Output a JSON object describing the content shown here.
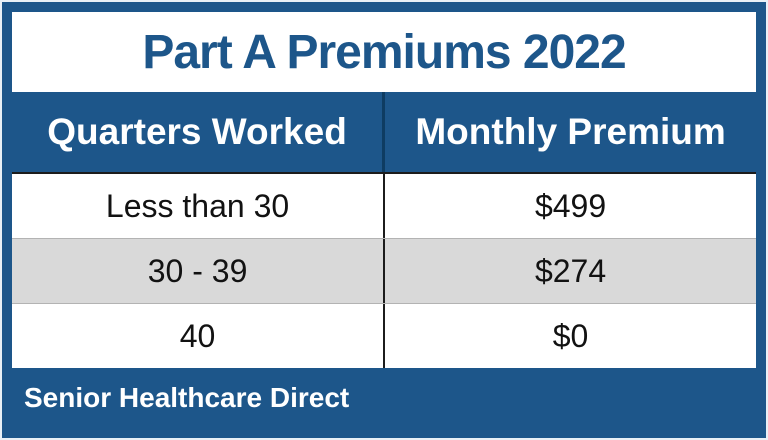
{
  "chart_data": {
    "type": "table",
    "title": "Part A Premiums 2022",
    "columns": [
      "Quarters Worked",
      "Monthly Premium"
    ],
    "rows": [
      [
        "Less than 30",
        "$499"
      ],
      [
        "30 - 39",
        "$274"
      ],
      [
        "40",
        "$0"
      ]
    ],
    "footer": "Senior Healthcare Direct"
  },
  "colors": {
    "navy": "#1d568a",
    "header_divider": "#0e3c62",
    "body_divider": "#1c1c1c",
    "row_alt_gray": "#d9d9d9",
    "title_text": "#1d568a",
    "body_text": "#121212",
    "outer_edge": "#e9f0f6"
  }
}
